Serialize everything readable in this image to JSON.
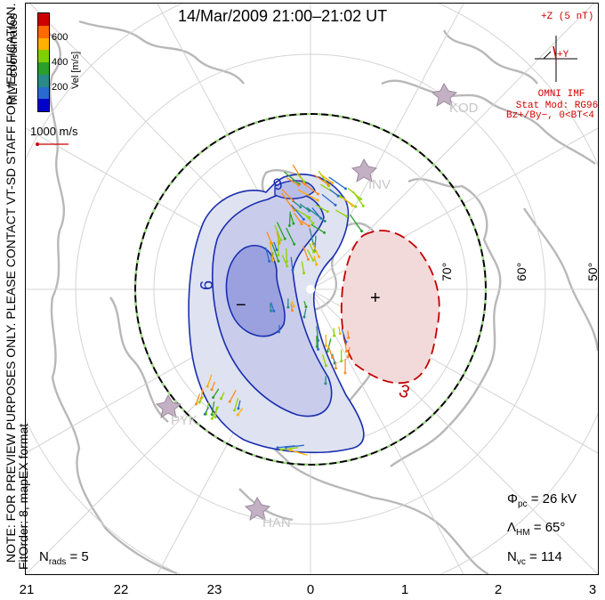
{
  "title": "14/Mar/2009 21:00–21:02 UT",
  "coordinate_system": "MLT coordinates",
  "velocity_scale": {
    "label": "Vel [m/s]",
    "ticks": [
      "600",
      "400",
      "200"
    ],
    "colors": [
      "#cc0000",
      "#ff6a00",
      "#ffb000",
      "#7fd000",
      "#2aa02a",
      "#2a8a8a",
      "#2a6ad0",
      "#0000cc"
    ]
  },
  "reference_vector": {
    "label": "1000 m/s",
    "color": "#cc0000"
  },
  "imf": {
    "z_label": "+Z (5 nT)",
    "y_label": "+Y",
    "source": "OMNI IMF",
    "model": "Stat Mod: RG96",
    "condition": "Bz+/By−, 0<BT<4",
    "color": "#d40000"
  },
  "preview_note": "NOTE: FOR PREVIEW PURPOSES ONLY. PLEASE CONTACT VT-SD STAFF FOR VERIFICATION.",
  "fit_note": "FitOrder: 8, mapEX format",
  "radars": [
    "KOD",
    "INV",
    "PYK",
    "HAN"
  ],
  "latitude_labels": [
    "70°",
    "60°",
    "50°"
  ],
  "contours": [
    {
      "label": "6",
      "polarity": "negative"
    },
    {
      "label": "9",
      "polarity": "negative"
    },
    {
      "label": "3",
      "polarity": "positive"
    }
  ],
  "cell_markers": {
    "minimum": "−",
    "maximum": "+"
  },
  "stats": {
    "phi_pc": {
      "label": "Φ",
      "sub": "pc",
      "value": "= 26 kV"
    },
    "lambda_hm": {
      "label": "Λ",
      "sub": "HM",
      "value": "= 65°"
    },
    "n_vc": {
      "label": "N",
      "sub": "vc",
      "value": "= 114"
    },
    "n_rads": {
      "label": "N",
      "sub": "rads",
      "value": "= 5"
    }
  },
  "mlt_axis": [
    "21",
    "22",
    "23",
    "0",
    "1",
    "2",
    "3"
  ]
}
